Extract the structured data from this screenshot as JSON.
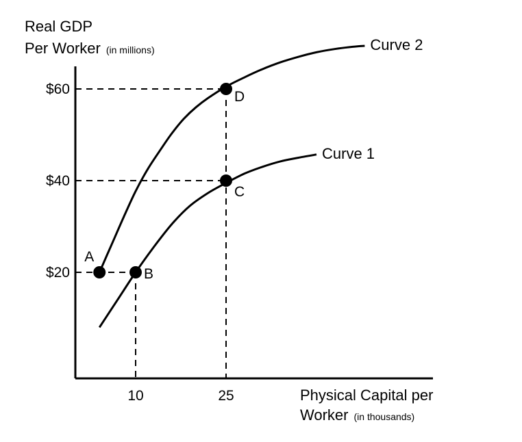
{
  "chart_data": {
    "type": "line",
    "y_title": "Real GDP",
    "y_title_line2": "Per Worker",
    "y_title_unit": "(in millions)",
    "x_title": "Physical Capital per",
    "x_title_line2": "Worker",
    "x_title_unit": "(in thousands)",
    "x_ticks": [
      {
        "value": 10,
        "label": "10"
      },
      {
        "value": 25,
        "label": "25"
      }
    ],
    "y_ticks": [
      {
        "value": 20,
        "label": "$20"
      },
      {
        "value": 40,
        "label": "$40"
      },
      {
        "value": 60,
        "label": "$60"
      }
    ],
    "series": [
      {
        "name": "Curve 1",
        "x": [
          4,
          7,
          10,
          13,
          16,
          19,
          22,
          25,
          28,
          31,
          34,
          37,
          40
        ],
        "y": [
          8,
          14,
          20,
          25.5,
          30.5,
          34.5,
          37.3,
          39.5,
          41.5,
          43,
          44.2,
          45,
          45.7
        ]
      },
      {
        "name": "Curve 2",
        "x": [
          4,
          6,
          8,
          10,
          12,
          14,
          16,
          18,
          20,
          22,
          25,
          28,
          31,
          34,
          37,
          40,
          43,
          46,
          48
        ],
        "y": [
          20,
          26,
          32,
          37.7,
          42.5,
          46.5,
          50.3,
          53.5,
          56,
          58,
          60.5,
          62.5,
          64.3,
          65.8,
          67,
          68,
          68.7,
          69.2,
          69.4
        ]
      }
    ],
    "points": [
      {
        "label": "A",
        "x": 4,
        "y": 20
      },
      {
        "label": "B",
        "x": 10,
        "y": 20
      },
      {
        "label": "C",
        "x": 25,
        "y": 40
      },
      {
        "label": "D",
        "x": 25,
        "y": 60
      }
    ]
  }
}
